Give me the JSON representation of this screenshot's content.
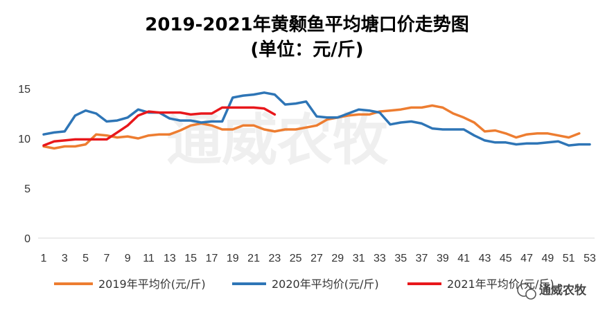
{
  "chart_data": {
    "type": "line",
    "title": "2019-2021年黄颡鱼平均塘口价走势图",
    "subtitle": "(单位：元/斤)",
    "xlabel": "",
    "ylabel": "",
    "xlim": [
      1,
      53
    ],
    "ylim": [
      0,
      15
    ],
    "yticks": [
      0,
      5,
      10,
      15
    ],
    "xticks": [
      1,
      3,
      5,
      7,
      9,
      11,
      13,
      15,
      17,
      19,
      21,
      23,
      25,
      27,
      29,
      31,
      33,
      35,
      37,
      39,
      41,
      43,
      45,
      47,
      49,
      51,
      53
    ],
    "grid": false,
    "legend": "bottom",
    "series": [
      {
        "name": "2019年平均价(元/斤)",
        "color": "#ED7D31",
        "x": [
          1,
          2,
          3,
          4,
          5,
          6,
          7,
          8,
          9,
          10,
          11,
          12,
          13,
          14,
          15,
          16,
          17,
          18,
          19,
          20,
          21,
          22,
          23,
          24,
          25,
          26,
          27,
          28,
          29,
          30,
          31,
          32,
          33,
          34,
          35,
          36,
          37,
          38,
          39,
          40,
          41,
          42,
          43,
          44,
          45,
          46,
          47,
          48,
          49,
          50,
          51,
          52
        ],
        "values": [
          9.2,
          9.0,
          9.2,
          9.2,
          9.4,
          10.4,
          10.3,
          10.1,
          10.2,
          10.0,
          10.3,
          10.4,
          10.4,
          10.8,
          11.3,
          11.5,
          11.3,
          10.9,
          10.9,
          11.3,
          11.3,
          10.9,
          10.7,
          10.9,
          10.9,
          11.1,
          11.3,
          11.9,
          12.1,
          12.3,
          12.4,
          12.4,
          12.7,
          12.8,
          12.9,
          13.1,
          13.1,
          13.3,
          13.1,
          12.5,
          12.1,
          11.6,
          10.7,
          10.8,
          10.5,
          10.1,
          10.4,
          10.5,
          10.5,
          10.3,
          10.1,
          10.5
        ]
      },
      {
        "name": "2020年平均价(元/斤)",
        "color": "#2E75B6",
        "x": [
          1,
          2,
          3,
          4,
          5,
          6,
          7,
          8,
          9,
          10,
          11,
          12,
          13,
          14,
          15,
          16,
          17,
          18,
          19,
          20,
          21,
          22,
          23,
          24,
          25,
          26,
          27,
          28,
          29,
          30,
          31,
          32,
          33,
          34,
          35,
          36,
          37,
          38,
          39,
          40,
          41,
          42,
          43,
          44,
          45,
          46,
          47,
          48,
          49,
          50,
          51,
          52,
          53
        ],
        "values": [
          10.4,
          10.6,
          10.7,
          12.3,
          12.8,
          12.5,
          11.7,
          11.8,
          12.1,
          12.9,
          12.6,
          12.6,
          12.0,
          11.8,
          11.8,
          11.6,
          11.7,
          11.7,
          14.1,
          14.3,
          14.4,
          14.6,
          14.4,
          13.4,
          13.5,
          13.7,
          12.2,
          12.1,
          12.1,
          12.5,
          12.9,
          12.8,
          12.6,
          11.4,
          11.6,
          11.7,
          11.5,
          11.0,
          10.9,
          10.9,
          10.9,
          10.3,
          9.8,
          9.6,
          9.6,
          9.4,
          9.5,
          9.5,
          9.6,
          9.7,
          9.3,
          9.4,
          9.4
        ]
      },
      {
        "name": "2021年平均价(元/斤)",
        "color": "#E8171B",
        "x": [
          1,
          2,
          3,
          4,
          5,
          6,
          7,
          8,
          9,
          10,
          11,
          12,
          13,
          14,
          15,
          16,
          17,
          18,
          19,
          20,
          21,
          22,
          23
        ],
        "values": [
          9.3,
          9.7,
          9.8,
          9.9,
          9.9,
          9.9,
          9.9,
          10.6,
          11.3,
          12.3,
          12.7,
          12.6,
          12.6,
          12.6,
          12.4,
          12.5,
          12.5,
          13.1,
          13.1,
          13.1,
          13.1,
          13.0,
          12.4
        ]
      }
    ]
  },
  "watermark": {
    "text": "通威农牧",
    "badge_label": "通威农牧"
  }
}
